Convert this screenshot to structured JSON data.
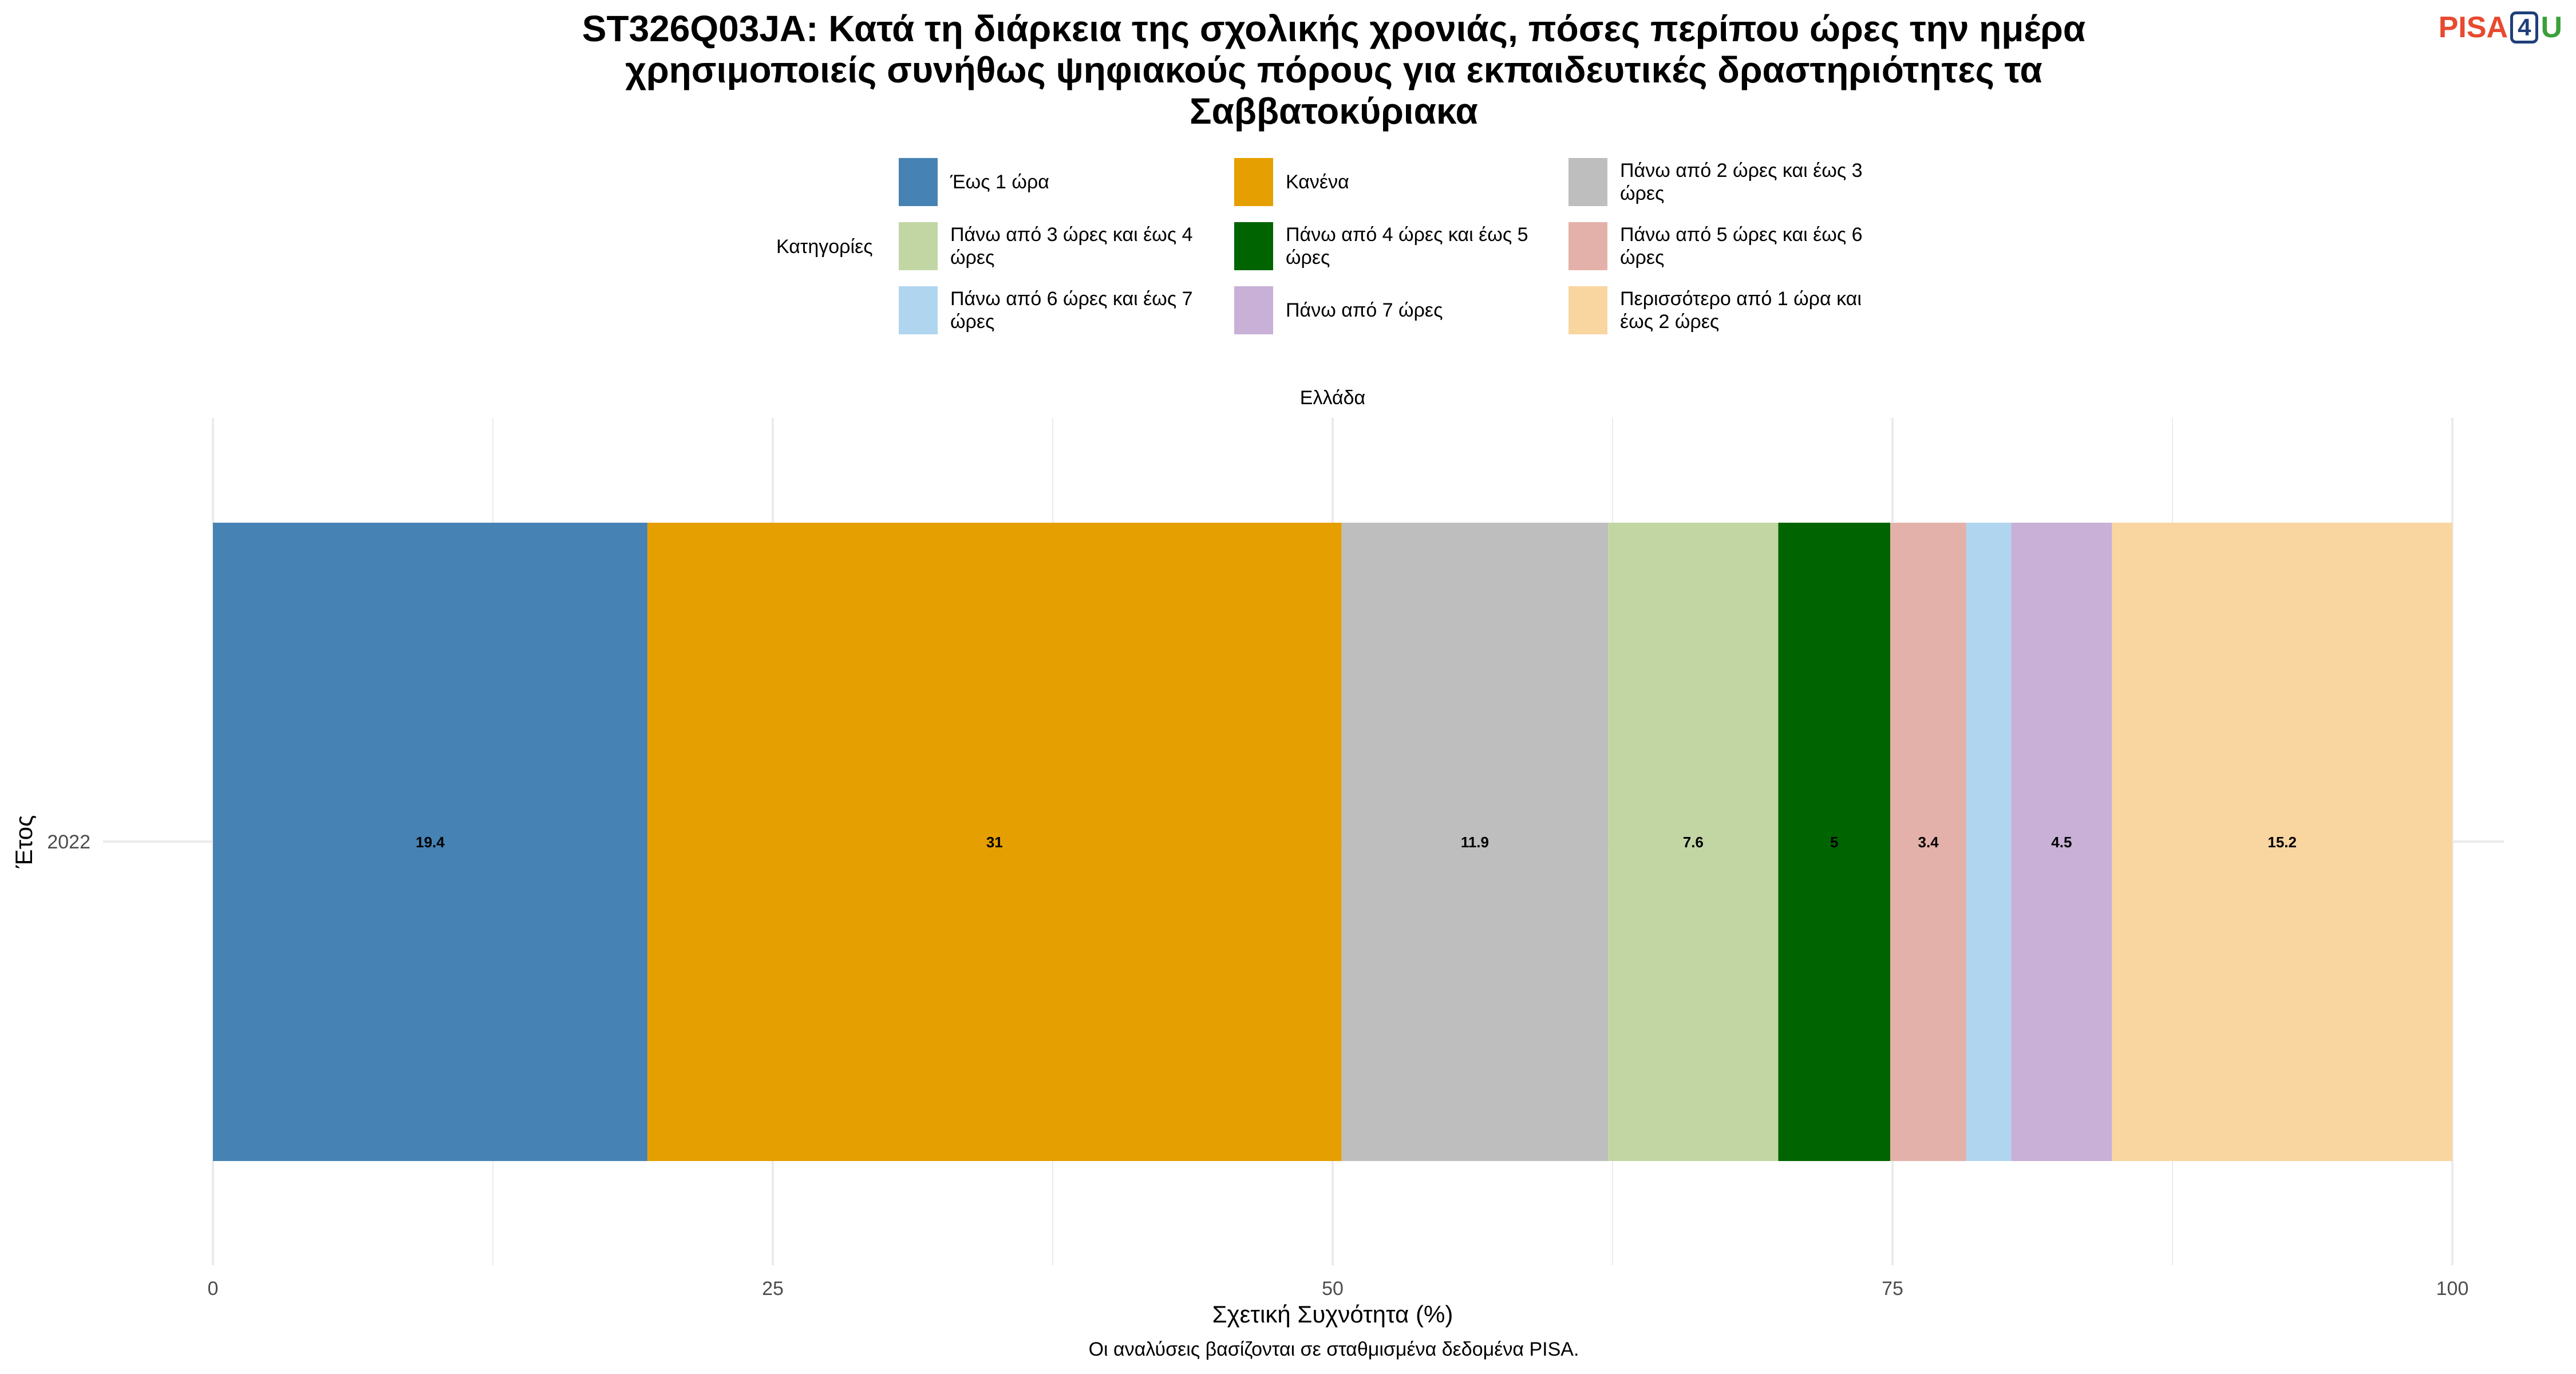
{
  "logo": {
    "part1": "PISA",
    "part2": "4",
    "part3": "U"
  },
  "chart_data": {
    "type": "bar",
    "orientation": "horizontal-stacked",
    "title_lines": [
      "ST326Q03JA: Κατά τη διάρκεια της σχολικής χρονιάς, πόσες περίπου ώρες την ημέρα",
      "χρησιμοποιείς συνήθως ψηφιακούς πόρους για εκπαιδευτικές δραστηριότητες τα",
      "Σαββατοκύριακα"
    ],
    "legend_title": "Κατηγορίες",
    "facet": "Ελλάδα",
    "xlabel": "Σχετική Συχνότητα (%)",
    "ylabel": "Έτος",
    "categories": [
      "2022"
    ],
    "xlim": [
      0,
      100
    ],
    "xticks": [
      0,
      25,
      50,
      75,
      100
    ],
    "grid": true,
    "legend_position": "top",
    "caption": "Οι αναλύσεις βασίζονται σε σταθμισμένα δεδομένα PISA.",
    "legend": [
      {
        "name": "Έως 1 ώρα",
        "color": "#4682b4"
      },
      {
        "name": "Κανένα",
        "color": "#e69f00"
      },
      {
        "name": "Πάνω από 2 ώρες και έως 3 ώρες",
        "color": "#bebebe"
      },
      {
        "name": "Πάνω από 3 ώρες και έως 4 ώρες",
        "color": "#c2d6a4"
      },
      {
        "name": "Πάνω από 4 ώρες και έως 5 ώρες",
        "color": "#006400"
      },
      {
        "name": "Πάνω από 5 ώρες και έως 6 ώρες",
        "color": "#e4b1aa"
      },
      {
        "name": "Πάνω από 6 ώρες και έως 7 ώρες",
        "color": "#b0d5ef"
      },
      {
        "name": "Πάνω από 7 ώρες",
        "color": "#c9b0d6"
      },
      {
        "name": "Περισσότερο από 1 ώρα και έως 2 ώρες",
        "color": "#f9d59f"
      }
    ],
    "series": [
      {
        "name": "Έως 1 ώρα",
        "value": 19.4,
        "label": "19.4",
        "color": "#4682b4"
      },
      {
        "name": "Κανένα",
        "value": 31,
        "label": "31",
        "color": "#e69f00"
      },
      {
        "name": "Πάνω από 2 ώρες και έως 3 ώρες",
        "value": 11.9,
        "label": "11.9",
        "color": "#bebebe"
      },
      {
        "name": "Πάνω από 3 ώρες και έως 4 ώρες",
        "value": 7.6,
        "label": "7.6",
        "color": "#c2d6a4"
      },
      {
        "name": "Πάνω από 4 ώρες και έως 5 ώρες",
        "value": 5,
        "label": "5",
        "color": "#006400"
      },
      {
        "name": "Πάνω από 5 ώρες και έως 6 ώρες",
        "value": 3.4,
        "label": "3.4",
        "color": "#e4b1aa"
      },
      {
        "name": "Πάνω από 6 ώρες και έως 7 ώρες",
        "value": 2.0,
        "label": "",
        "color": "#b0d5ef"
      },
      {
        "name": "Πάνω από 7 ώρες",
        "value": 4.5,
        "label": "4.5",
        "color": "#c9b0d6"
      },
      {
        "name": "Περισσότερο από 1 ώρα και έως 2 ώρες",
        "value": 15.2,
        "label": "15.2",
        "color": "#f9d59f"
      }
    ]
  }
}
